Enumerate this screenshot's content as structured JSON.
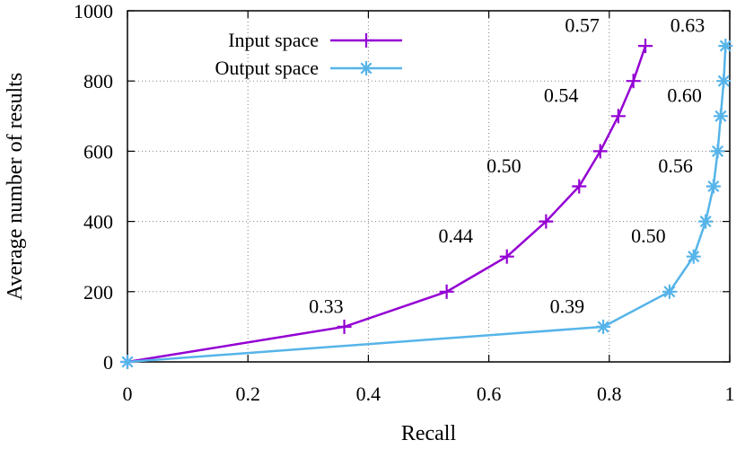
{
  "chart_data": {
    "type": "line",
    "xlabel": "Recall",
    "ylabel": "Average number of results",
    "xlim": [
      0,
      1
    ],
    "ylim": [
      0,
      1000
    ],
    "xticks": [
      0,
      0.2,
      0.4,
      0.6,
      0.8,
      1
    ],
    "xtick_labels": [
      "0",
      "0.2",
      "0.4",
      "0.6",
      "0.8",
      "1"
    ],
    "yticks": [
      0,
      200,
      400,
      600,
      800,
      1000
    ],
    "ytick_labels": [
      "0",
      "200",
      "400",
      "600",
      "800",
      "1000"
    ],
    "grid": true,
    "legend_position": "top-left",
    "series": [
      {
        "name": "Input space",
        "color": "#9400d3",
        "marker": "plus",
        "x": [
          0,
          0.36,
          0.53,
          0.63,
          0.695,
          0.75,
          0.785,
          0.815,
          0.84,
          0.86
        ],
        "y": [
          0,
          100,
          200,
          300,
          400,
          500,
          600,
          700,
          800,
          900
        ]
      },
      {
        "name": "Output space",
        "color": "#56b4e9",
        "marker": "asterisk",
        "x": [
          0,
          0.79,
          0.9,
          0.94,
          0.96,
          0.973,
          0.98,
          0.985,
          0.99,
          0.993
        ],
        "y": [
          0,
          100,
          200,
          300,
          400,
          500,
          600,
          700,
          800,
          900
        ]
      }
    ],
    "annotations": [
      {
        "text": "0.33",
        "x": 0.33,
        "y": 140
      },
      {
        "text": "0.44",
        "x": 0.545,
        "y": 340
      },
      {
        "text": "0.50",
        "x": 0.625,
        "y": 540
      },
      {
        "text": "0.54",
        "x": 0.72,
        "y": 740
      },
      {
        "text": "0.57",
        "x": 0.755,
        "y": 940
      },
      {
        "text": "0.39",
        "x": 0.73,
        "y": 140
      },
      {
        "text": "0.50",
        "x": 0.865,
        "y": 340
      },
      {
        "text": "0.56",
        "x": 0.91,
        "y": 540
      },
      {
        "text": "0.60",
        "x": 0.925,
        "y": 740
      },
      {
        "text": "0.63",
        "x": 0.93,
        "y": 940
      }
    ]
  }
}
